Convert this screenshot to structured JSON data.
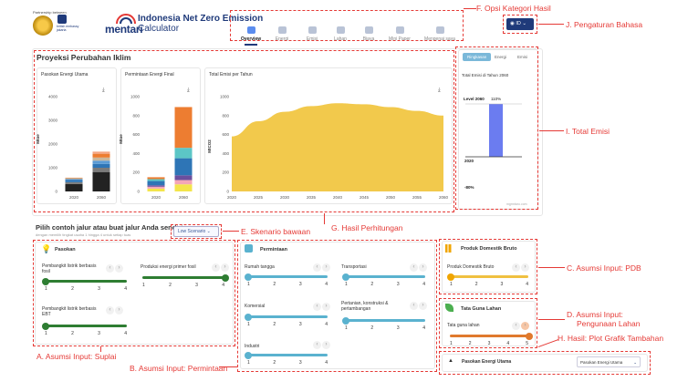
{
  "header": {
    "partnership": "Partnership between",
    "partner_name": "british embassy jakarta",
    "brand_mentari": "mentari",
    "app_title_line1": "Indonesia Net Zero Emission",
    "app_title_line2": "Calculator"
  },
  "nav": {
    "items": [
      {
        "label": "Overview",
        "active": true
      },
      {
        "label": "Energi",
        "active": false
      },
      {
        "label": "Emisi",
        "active": false
      },
      {
        "label": "Lahan",
        "active": false
      },
      {
        "label": "Biaya",
        "active": false
      },
      {
        "label": "Mini Paper",
        "active": false
      },
      {
        "label": "Mengenai saya",
        "active": false
      }
    ],
    "language_code": "ID"
  },
  "main": {
    "title": "Proyeksi Perubahan Iklim",
    "source": "mgrmtaro.com"
  },
  "charts": {
    "supply_title": "Pasokan Energi Utama",
    "demand_title": "Permintaan Energi Final",
    "emissions_title": "Total Emisi per Tahun",
    "total_title": "Total Emisi di Tahun 2060",
    "supply_ylabel": "Mtoe",
    "demand_ylabel": "Mtoe",
    "emis_ylabel": "MtCO2",
    "right_tabs": [
      "Ringkasan",
      "Energi",
      "Emisi"
    ],
    "level_label": "Level 2060",
    "level_value": "110%",
    "bottom_2020": "2020",
    "bottom_pct": "-80%"
  },
  "chart_data": [
    {
      "type": "bar",
      "title": "Pasokan Energi Utama",
      "ylabel": "Mtoe",
      "categories": [
        "2020",
        "2060"
      ],
      "ylim": [
        0,
        4000
      ],
      "yticks": [
        "0",
        "1000",
        "2000",
        "3000",
        "4000"
      ],
      "series": [
        {
          "color": "#222222",
          "values": [
            310,
            820
          ]
        },
        {
          "color": "#7b7b7b",
          "values": [
            80,
            180
          ]
        },
        {
          "color": "#2e75b6",
          "values": [
            90,
            160
          ]
        },
        {
          "color": "#5b9bd5",
          "values": [
            40,
            140
          ]
        },
        {
          "color": "#c9b79c",
          "values": [
            40,
            130
          ]
        },
        {
          "color": "#ed7d31",
          "values": [
            20,
            160
          ]
        },
        {
          "color": "#f4a582",
          "values": [
            0,
            90
          ]
        }
      ]
    },
    {
      "type": "bar",
      "title": "Permintaan Energi Final",
      "ylabel": "Mtoe",
      "categories": [
        "2020",
        "2060"
      ],
      "ylim": [
        0,
        1000
      ],
      "yticks": [
        "0",
        "200",
        "400",
        "600",
        "800",
        "1000"
      ],
      "series": [
        {
          "color": "#f3e54b",
          "values": [
            30,
            75
          ]
        },
        {
          "color": "#f4a6b7",
          "values": [
            20,
            45
          ]
        },
        {
          "color": "#6b4f9e",
          "values": [
            15,
            50
          ]
        },
        {
          "color": "#2e75b6",
          "values": [
            45,
            180
          ]
        },
        {
          "color": "#5cc6c6",
          "values": [
            20,
            110
          ]
        },
        {
          "color": "#ed7d31",
          "values": [
            20,
            430
          ]
        }
      ]
    },
    {
      "type": "area",
      "title": "Total Emisi per Tahun",
      "ylabel": "MtCO2",
      "x": [
        "2020",
        "2025",
        "2030",
        "2035",
        "2040",
        "2045",
        "2050",
        "2055",
        "2060"
      ],
      "ylim": [
        0,
        1000
      ],
      "yticks": [
        "0",
        "200",
        "400",
        "600",
        "800",
        "1000"
      ],
      "color": "#f2c94c",
      "values": [
        580,
        740,
        840,
        900,
        930,
        920,
        890,
        850,
        800
      ]
    },
    {
      "type": "bar",
      "title": "Total Emisi di Tahun 2060",
      "categories": [
        "2060"
      ],
      "values": [
        110
      ],
      "color": "#6b7cf0"
    }
  ],
  "inputs": {
    "heading": "Pilih contoh jalur atau buat jalur Anda sendiri",
    "subheading": "dengan memilih tingkat usaha 1 hingga 4 untuk setiap tuas",
    "scenario_button": "Low Scenario",
    "supply": {
      "title": "Pasokan",
      "levers": [
        {
          "label": "Pembangkit listrik berbasis fosil",
          "level": 1
        },
        {
          "label": "Produksi energi primer fosil",
          "level": 4
        },
        {
          "label": "Pembangkit listrik berbasis EBT",
          "level": 1
        }
      ]
    },
    "demand": {
      "title": "Permintaan",
      "levers": [
        {
          "label": "Rumah tangga",
          "level": 1
        },
        {
          "label": "Transportasi",
          "level": 1
        },
        {
          "label": "Komersial",
          "level": 1
        },
        {
          "label": "Pertanian, konstruksi & pertambangan",
          "level": 1
        },
        {
          "label": "Industri",
          "level": 1
        }
      ]
    },
    "pdb": {
      "title": "Produk Domestik Bruto",
      "lever": "Produk Domestik Bruto",
      "level": 1
    },
    "land": {
      "title": "Tata Guna Lahan",
      "lever": "Tata guna lahan",
      "level": 5
    },
    "extra": {
      "title": "Pasokan Energi Utama",
      "select_value": "Pasokan Energi Utama"
    },
    "ticks4": [
      "1",
      "2",
      "3",
      "4"
    ],
    "ticks_land": [
      "1",
      "2",
      "3",
      "4",
      "5"
    ]
  },
  "annotations": {
    "F": "F. Opsi Kategori Hasil",
    "J": "J. Pengaturan Bahasa",
    "I": "I. Total Emisi",
    "E": "E. Skenario bawaan",
    "G": "G. Hasil Perhitungan",
    "C": "C. Asumsi Input: PDB",
    "D1": "D. Asumsi Input:",
    "D2": "Pengunaan Lahan",
    "H": "H. Hasil: Plot Grafik Tambahan",
    "A": "A. Asumsi Input: Suplai",
    "B": "B. Asumsi Input: Permintaan"
  },
  "colors": {
    "supply_green": "#2e7d32",
    "demand_teal": "#5ab2cf",
    "pdb_orange": "#f0a500",
    "land_orange": "#e07a2e",
    "annotation_red": "#e53935"
  }
}
